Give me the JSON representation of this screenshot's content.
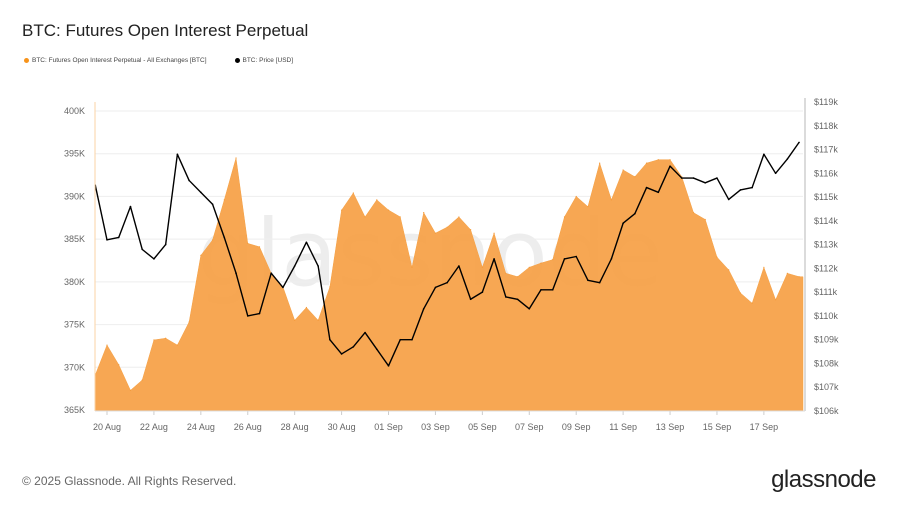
{
  "title": "BTC: Futures Open Interest Perpetual",
  "footer": "© 2025 Glassnode. All Rights Reserved.",
  "logo": "glassnode",
  "watermark": "glassnode",
  "chart_data": {
    "type": "area+line",
    "title": "BTC: Futures Open Interest Perpetual",
    "legend_position": "top-left",
    "grid": true,
    "x": [
      "2025-08-19T12",
      "2025-08-20T00",
      "2025-08-20T12",
      "2025-08-21T00",
      "2025-08-21T12",
      "2025-08-22T00",
      "2025-08-22T12",
      "2025-08-23T00",
      "2025-08-23T12",
      "2025-08-24T00",
      "2025-08-24T12",
      "2025-08-25T00",
      "2025-08-25T12",
      "2025-08-26T00",
      "2025-08-26T12",
      "2025-08-27T00",
      "2025-08-27T12",
      "2025-08-28T00",
      "2025-08-28T12",
      "2025-08-29T00",
      "2025-08-29T12",
      "2025-08-30T00",
      "2025-08-30T12",
      "2025-08-31T00",
      "2025-08-31T12",
      "2025-09-01T00",
      "2025-09-01T12",
      "2025-09-02T00",
      "2025-09-02T12",
      "2025-09-03T00",
      "2025-09-03T12",
      "2025-09-04T00",
      "2025-09-04T12",
      "2025-09-05T00",
      "2025-09-05T12",
      "2025-09-06T00",
      "2025-09-06T12",
      "2025-09-07T00",
      "2025-09-07T12",
      "2025-09-08T00",
      "2025-09-08T12",
      "2025-09-09T00",
      "2025-09-09T12",
      "2025-09-10T00",
      "2025-09-10T12",
      "2025-09-11T00",
      "2025-09-11T12",
      "2025-09-12T00",
      "2025-09-12T12",
      "2025-09-13T00",
      "2025-09-13T12",
      "2025-09-14T00",
      "2025-09-14T12",
      "2025-09-15T00",
      "2025-09-15T12",
      "2025-09-16T00",
      "2025-09-16T12",
      "2025-09-17T00",
      "2025-09-17T12",
      "2025-09-18T00",
      "2025-09-18T12"
    ],
    "x_ticks": [
      "20 Aug",
      "22 Aug",
      "24 Aug",
      "26 Aug",
      "28 Aug",
      "30 Aug",
      "01 Sep",
      "03 Sep",
      "05 Sep",
      "07 Sep",
      "09 Sep",
      "11 Sep",
      "13 Sep",
      "15 Sep",
      "17 Sep"
    ],
    "x_tick_dates": [
      "2025-08-20",
      "2025-08-22",
      "2025-08-24",
      "2025-08-26",
      "2025-08-28",
      "2025-08-30",
      "2025-09-01",
      "2025-09-03",
      "2025-09-05",
      "2025-09-07",
      "2025-09-09",
      "2025-09-11",
      "2025-09-13",
      "2025-09-15",
      "2025-09-17"
    ],
    "y_left": {
      "ticks": [
        "365K",
        "370K",
        "375K",
        "380K",
        "385K",
        "390K",
        "395K",
        "400K"
      ],
      "tick_values": [
        365,
        370,
        375,
        380,
        385,
        390,
        395,
        400
      ],
      "range": [
        365,
        401
      ],
      "unit": "K BTC"
    },
    "y_right": {
      "ticks": [
        "$106k",
        "$107k",
        "$108k",
        "$109k",
        "$110k",
        "$111k",
        "$112k",
        "$113k",
        "$114k",
        "$115k",
        "$116k",
        "$117k",
        "$118k",
        "$119k"
      ],
      "tick_values": [
        106,
        107,
        108,
        109,
        110,
        111,
        112,
        113,
        114,
        115,
        116,
        117,
        118,
        119
      ],
      "range": [
        106,
        119
      ],
      "unit": "k USD"
    },
    "series": [
      {
        "name": "BTC: Futures Open Interest Perpetual - All Exchanges [BTC]",
        "axis": "left",
        "style": "area",
        "color": "#f7931a",
        "values": [
          369.1,
          372.6,
          370.3,
          367.3,
          368.5,
          373.2,
          373.4,
          372.6,
          375.3,
          383.1,
          384.9,
          389.6,
          394.5,
          384.5,
          384.1,
          381.0,
          379.4,
          375.5,
          377.0,
          375.5,
          379.4,
          388.4,
          390.4,
          387.6,
          389.6,
          388.4,
          387.6,
          381.7,
          388.1,
          385.7,
          386.4,
          387.6,
          386.1,
          381.7,
          385.7,
          381.0,
          380.6,
          381.7,
          382.2,
          382.6,
          387.6,
          390.0,
          388.8,
          393.9,
          389.6,
          393.1,
          392.3,
          393.9,
          394.3,
          394.3,
          392.3,
          388.1,
          387.3,
          382.9,
          381.4,
          378.7,
          377.5,
          381.7,
          377.9,
          381.0,
          380.6
        ]
      },
      {
        "name": "BTC: Price [USD]",
        "axis": "right",
        "style": "line",
        "color": "#000000",
        "values": [
          115.5,
          113.2,
          113.3,
          114.6,
          112.8,
          112.4,
          113.0,
          116.8,
          115.7,
          115.2,
          114.7,
          113.3,
          111.8,
          110.0,
          110.1,
          111.8,
          111.2,
          112.1,
          113.1,
          112.1,
          109.0,
          108.4,
          108.7,
          109.3,
          108.6,
          107.9,
          109.0,
          109.0,
          110.3,
          111.2,
          111.4,
          112.1,
          110.7,
          111.0,
          112.4,
          110.8,
          110.7,
          110.3,
          111.1,
          111.1,
          112.4,
          112.5,
          111.5,
          111.4,
          112.4,
          113.9,
          114.3,
          115.4,
          115.2,
          116.3,
          115.8,
          115.8,
          115.6,
          115.8,
          114.9,
          115.3,
          115.4,
          116.8,
          116.0,
          116.6,
          117.3
        ]
      }
    ]
  }
}
